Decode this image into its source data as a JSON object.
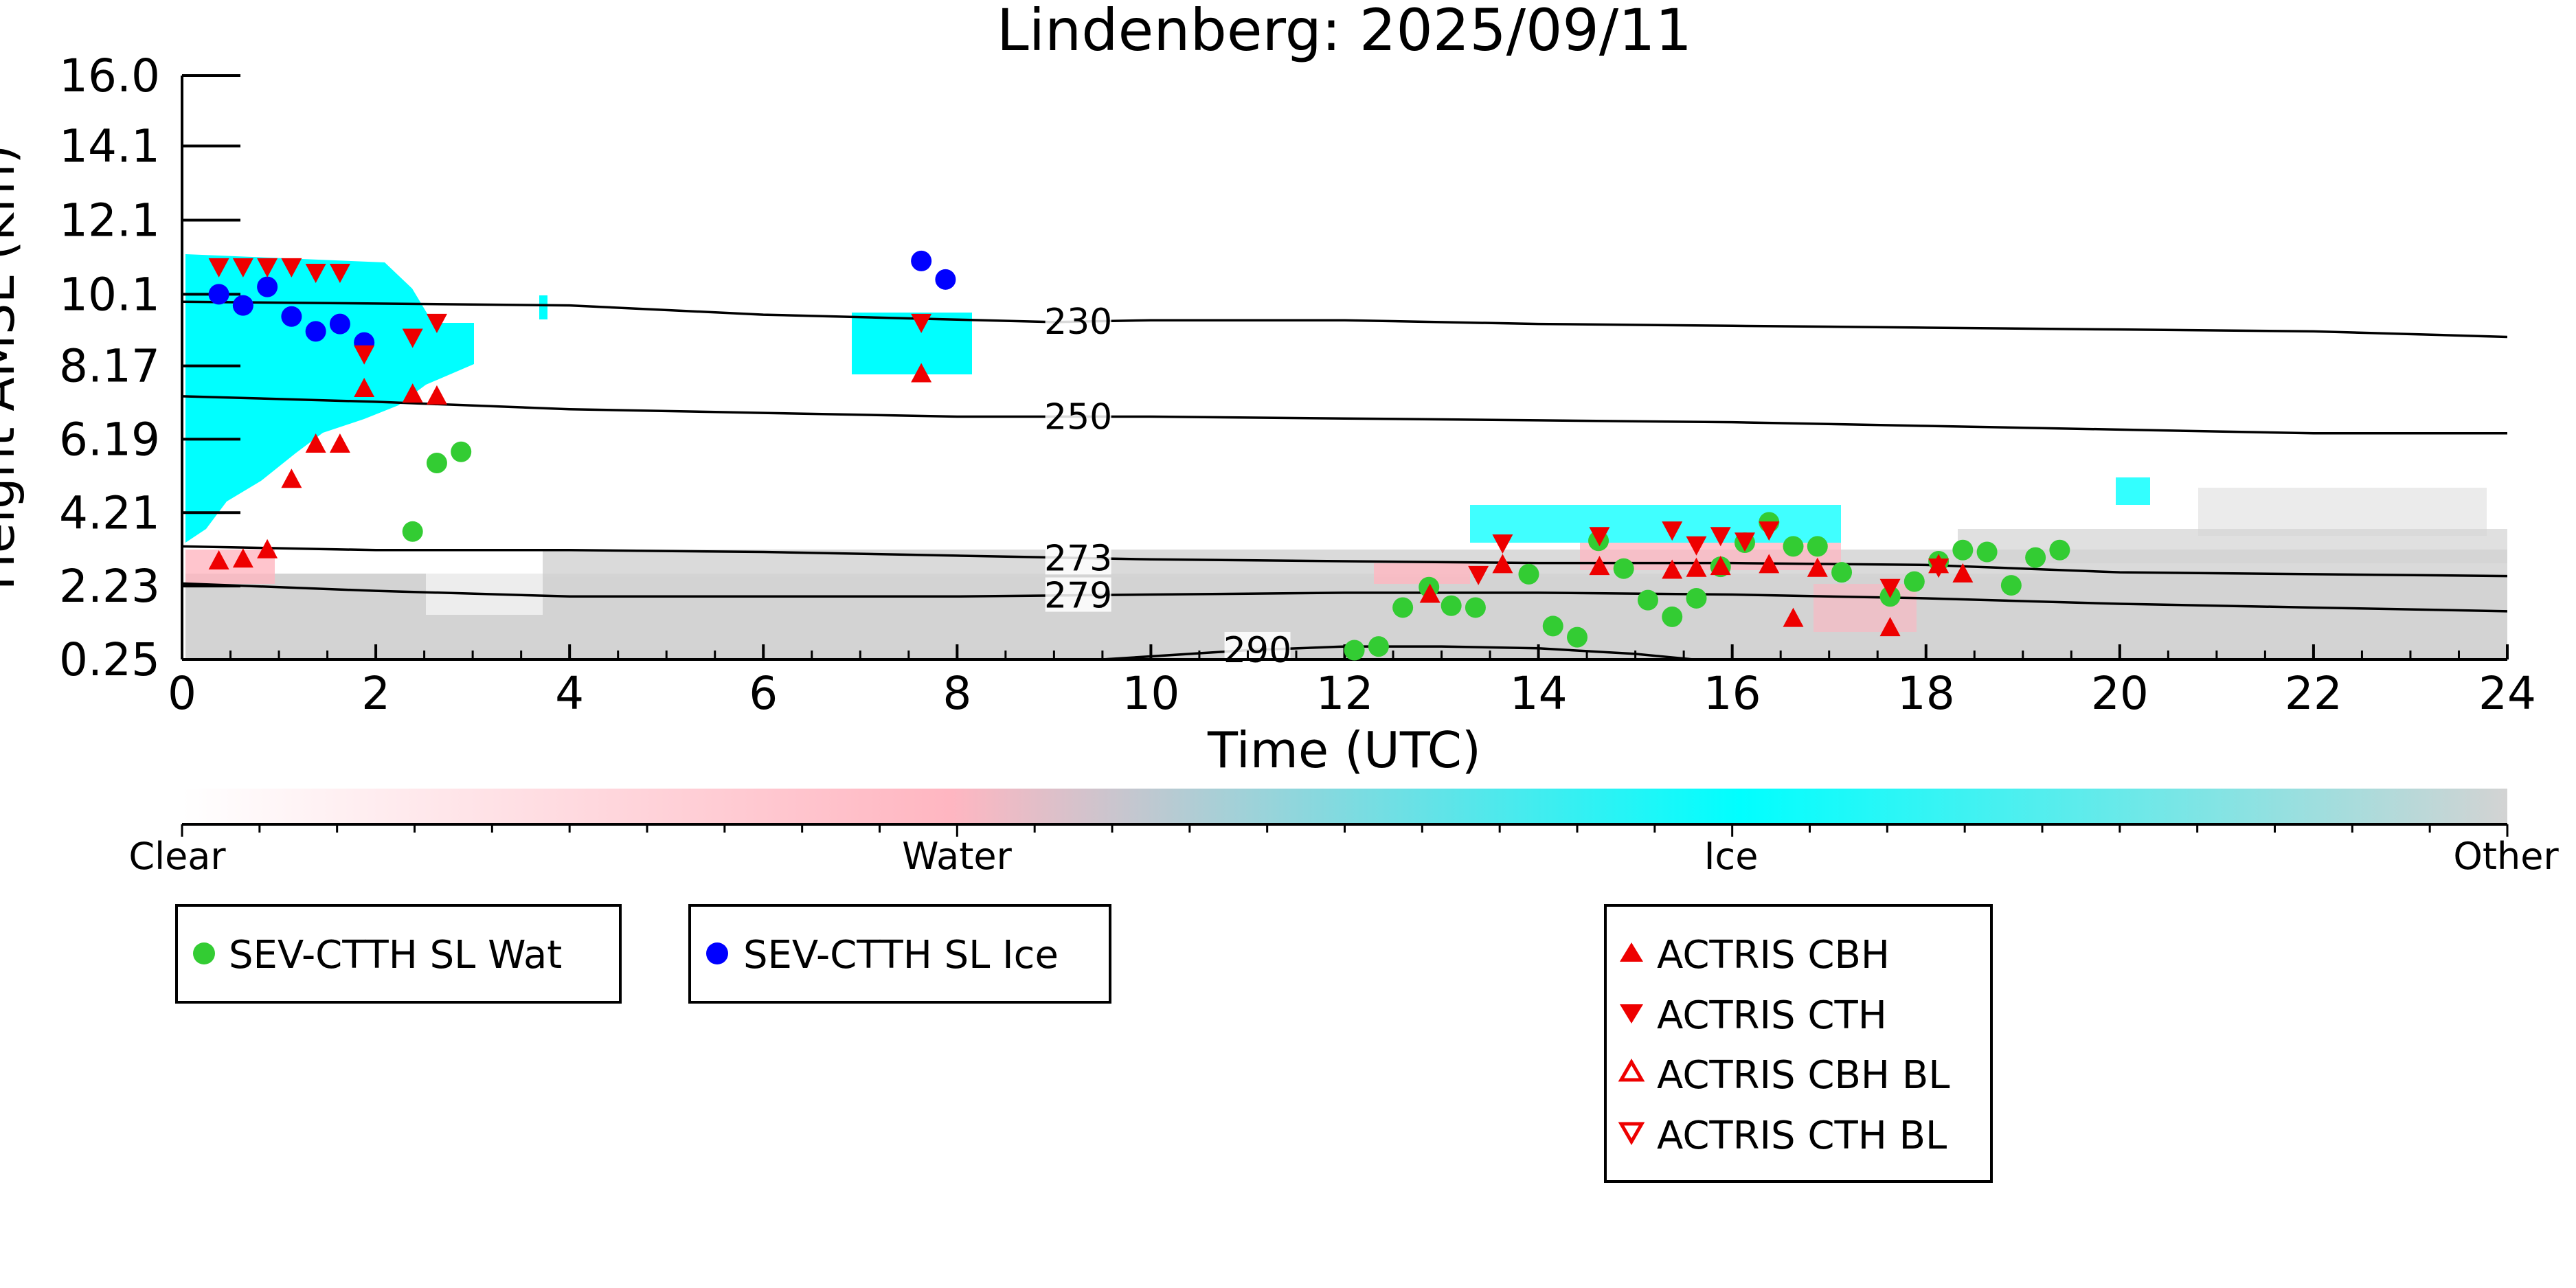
{
  "chart_data": {
    "type": "scatter",
    "title": "Lindenberg: 2025/09/11",
    "xlabel": "Time (UTC)",
    "ylabel": "Height AMSL (km)",
    "xlim": [
      0,
      24
    ],
    "ylim": [
      0.25,
      16.0
    ],
    "x_ticks": [
      0,
      2,
      4,
      6,
      8,
      10,
      12,
      14,
      16,
      18,
      20,
      22,
      24
    ],
    "y_ticks": [
      "0.25",
      "2.23",
      "4.21",
      "6.19",
      "8.17",
      "10.1",
      "12.1",
      "14.1",
      "16.0"
    ],
    "y_tick_values": [
      0.25,
      2.23,
      4.21,
      6.19,
      8.17,
      10.1,
      12.1,
      14.1,
      16.0
    ],
    "colorbar": {
      "labels": [
        "Clear",
        "Water",
        "Ice",
        "Other"
      ],
      "colors": [
        "#ffffff",
        "#ffb6c1",
        "#00ffff",
        "#d3d3d3"
      ]
    },
    "isotherms": [
      {
        "label": "230",
        "label_x": 9.25,
        "x": [
          0,
          2,
          4,
          6,
          7.5,
          9,
          10,
          12,
          14,
          16,
          18,
          20,
          22,
          24
        ],
        "y": [
          9.9,
          9.85,
          9.8,
          9.55,
          9.45,
          9.35,
          9.4,
          9.4,
          9.3,
          9.25,
          9.2,
          9.15,
          9.1,
          8.95
        ]
      },
      {
        "label": "250",
        "label_x": 9.25,
        "x": [
          0,
          2,
          4,
          6,
          8,
          10,
          12,
          14,
          16,
          18,
          20,
          22,
          24
        ],
        "y": [
          7.35,
          7.2,
          7.0,
          6.9,
          6.8,
          6.8,
          6.75,
          6.7,
          6.65,
          6.55,
          6.45,
          6.35,
          6.35
        ]
      },
      {
        "label": "273",
        "label_x": 9.25,
        "x": [
          0,
          2,
          4,
          6,
          8,
          10,
          12,
          14,
          16,
          18,
          20,
          22,
          24
        ],
        "y": [
          3.3,
          3.2,
          3.2,
          3.15,
          3.05,
          2.95,
          2.9,
          2.85,
          2.85,
          2.8,
          2.6,
          2.55,
          2.5
        ]
      },
      {
        "label": "279",
        "label_x": 9.25,
        "x": [
          0,
          2,
          4,
          6,
          8,
          10,
          12,
          14,
          16,
          18,
          20,
          22,
          24
        ],
        "y": [
          2.3,
          2.1,
          1.95,
          1.95,
          1.95,
          2.0,
          2.05,
          2.05,
          2.0,
          1.9,
          1.75,
          1.65,
          1.55
        ]
      },
      {
        "label": "290",
        "label_x": 11.1,
        "x": [
          9.5,
          11,
          12,
          13,
          14,
          15,
          15.6
        ],
        "y": [
          0.25,
          0.5,
          0.6,
          0.6,
          0.55,
          0.4,
          0.25
        ]
      }
    ],
    "series": [
      {
        "name": "SEV-CTTH SL Wat",
        "marker": "circle",
        "color": "#33cc33",
        "x": [
          2.38,
          2.63,
          2.88,
          12.1,
          12.35,
          12.6,
          12.87,
          13.1,
          13.35,
          13.9,
          14.15,
          14.4,
          14.62,
          14.88,
          15.13,
          15.38,
          15.63,
          15.88,
          16.13,
          16.38,
          16.63,
          16.88,
          17.13,
          17.63,
          17.88,
          18.13,
          18.38,
          18.63,
          18.88,
          19.13,
          19.38
        ],
        "y": [
          3.7,
          5.55,
          5.85,
          0.5,
          0.6,
          1.65,
          2.2,
          1.7,
          1.65,
          2.55,
          1.15,
          0.85,
          3.45,
          2.7,
          1.85,
          1.4,
          1.9,
          2.75,
          3.4,
          3.95,
          3.3,
          3.3,
          2.6,
          1.95,
          2.35,
          2.9,
          3.2,
          3.15,
          2.25,
          3.0,
          3.2
        ]
      },
      {
        "name": "SEV-CTTH SL Ice",
        "marker": "circle",
        "color": "#0000ff",
        "x": [
          0.38,
          0.63,
          0.88,
          1.13,
          1.38,
          1.63,
          1.88,
          7.63,
          7.88
        ],
        "y": [
          10.1,
          9.8,
          10.3,
          9.5,
          9.1,
          9.3,
          8.8,
          11.0,
          10.5
        ]
      },
      {
        "name": "ACTRIS CBH",
        "marker": "triangle-up",
        "color": "#ee0000",
        "x": [
          0.38,
          0.63,
          0.88,
          1.13,
          1.38,
          1.63,
          1.88,
          2.38,
          2.63,
          7.63,
          12.88,
          13.63,
          14.63,
          15.38,
          15.63,
          15.88,
          16.38,
          16.63,
          16.88,
          17.63,
          18.13,
          18.38
        ],
        "y": [
          2.9,
          2.95,
          3.2,
          5.1,
          6.05,
          6.05,
          7.55,
          7.4,
          7.35,
          7.95,
          2.0,
          2.8,
          2.75,
          2.65,
          2.7,
          2.75,
          2.8,
          1.35,
          2.7,
          1.1,
          2.8,
          2.55
        ]
      },
      {
        "name": "ACTRIS CTH",
        "marker": "triangle-down",
        "color": "#ee0000",
        "x": [
          0.38,
          0.63,
          0.88,
          1.13,
          1.38,
          1.63,
          1.88,
          2.38,
          2.63,
          7.63,
          13.38,
          13.63,
          14.63,
          15.38,
          15.63,
          15.88,
          16.13,
          16.38,
          17.63,
          18.13
        ],
        "y": [
          10.85,
          10.85,
          10.85,
          10.85,
          10.7,
          10.7,
          8.5,
          8.95,
          9.35,
          9.35,
          2.55,
          3.4,
          3.6,
          3.75,
          3.35,
          3.6,
          3.45,
          3.75,
          2.2,
          2.75
        ]
      },
      {
        "name": "ACTRIS CBH BL",
        "marker": "triangle-up-open",
        "color": "#ee0000",
        "x": [],
        "y": []
      },
      {
        "name": "ACTRIS CTH BL",
        "marker": "triangle-down-open",
        "color": "#ee0000",
        "x": [],
        "y": []
      }
    ],
    "legend_groups": [
      [
        "SEV-CTTH SL Wat"
      ],
      [
        "SEV-CTTH SL Ice"
      ],
      [
        "ACTRIS CBH",
        "ACTRIS CTH",
        "ACTRIS CBH BL",
        "ACTRIS CTH BL"
      ]
    ],
    "grid": false,
    "legend_placement": "below"
  }
}
